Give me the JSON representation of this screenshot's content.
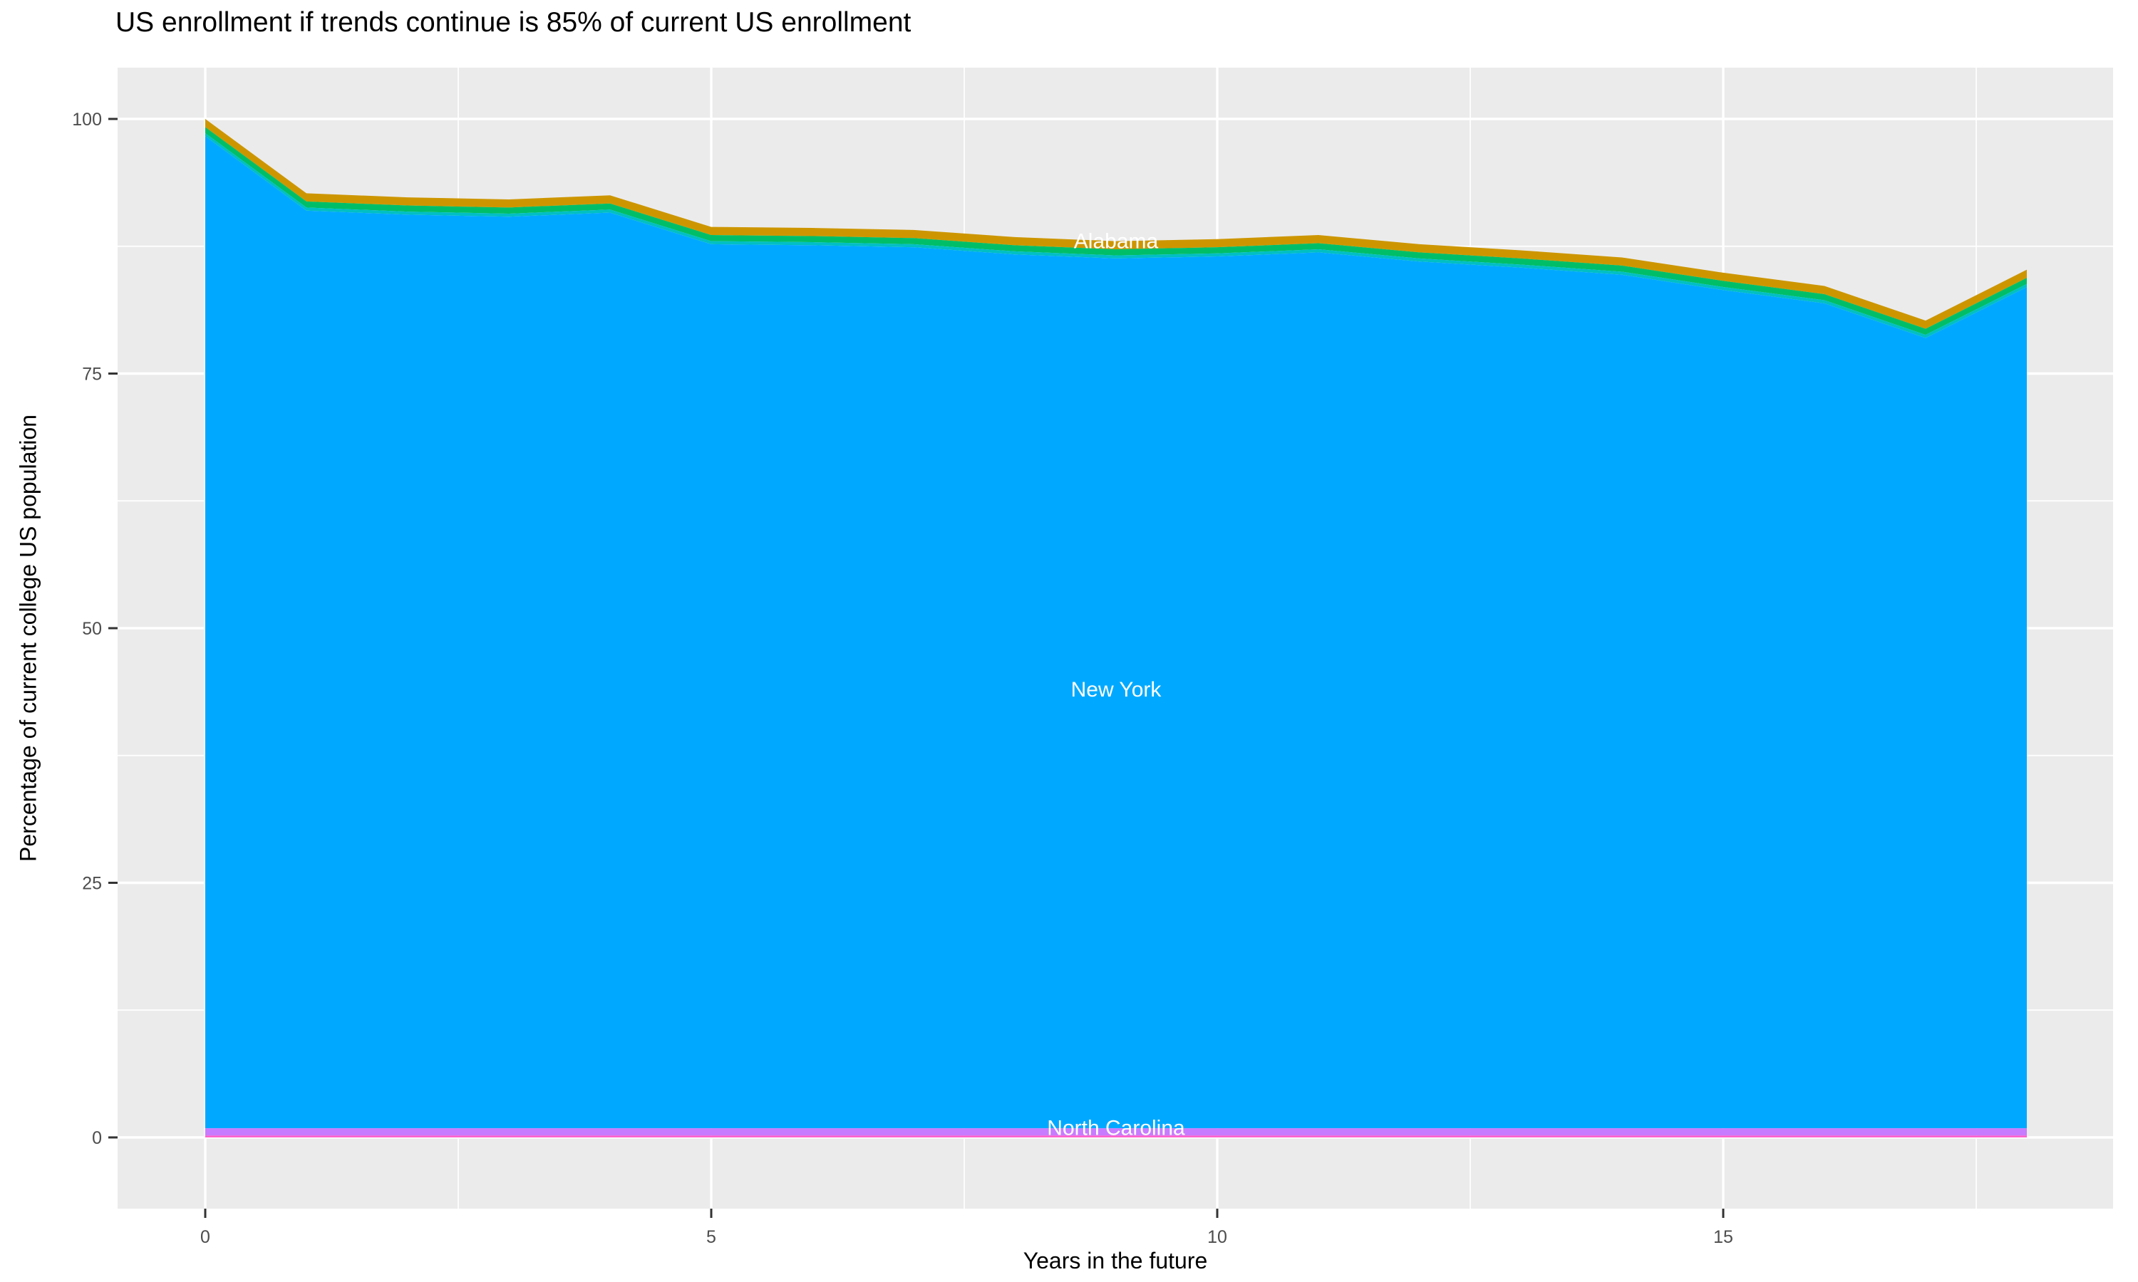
{
  "title": "US enrollment if trends continue is 85% of current US enrollment",
  "axes": {
    "x_label": "Years in the future",
    "y_label": "Percentage of current college US population"
  },
  "chart_data": {
    "type": "area",
    "stacked": true,
    "title": "US enrollment if trends continue is 85% of current US enrollment",
    "xlabel": "Years in the future",
    "ylabel": "Percentage of current college US population",
    "xlim": [
      0,
      18
    ],
    "ylim": [
      0,
      100
    ],
    "x_ticks": [
      0,
      5,
      10,
      15
    ],
    "y_ticks": [
      0,
      25,
      50,
      75,
      100
    ],
    "x_minor_gridlines": [
      2.5,
      7.5,
      12.5,
      17.5
    ],
    "y_minor_gridlines": [
      12.5,
      37.5,
      62.5,
      87.5
    ],
    "grid": "on",
    "legend": "none",
    "x": [
      0,
      1,
      2,
      3,
      4,
      5,
      6,
      7,
      8,
      9,
      10,
      11,
      12,
      13,
      14,
      15,
      16,
      17,
      18
    ],
    "stack_top_total": [
      100,
      92.7,
      92.3,
      92.1,
      92.5,
      89.4,
      89.3,
      89.1,
      88.4,
      88.0,
      88.2,
      88.6,
      87.7,
      87.1,
      86.4,
      84.9,
      83.6,
      80.2,
      85.2
    ],
    "layers": [
      {
        "name": "top-band-gold",
        "color": "#CD9600",
        "top_offset": 0,
        "bottom_offset": 0.8
      },
      {
        "name": "band-green",
        "color": "#00BE67",
        "top_offset": 0.8,
        "bottom_offset": 1.4
      },
      {
        "name": "band-teal",
        "color": "#00BFC4",
        "top_offset": 1.4,
        "bottom_offset": 1.7
      },
      {
        "name": "band-azure-new-york",
        "color": "#00A9FF",
        "top_offset": 1.7,
        "bottom_const": 0.9
      },
      {
        "name": "band-violet-north-carolina",
        "color": "#C77CFF",
        "top_const": 0.9,
        "bottom_const": 0.18
      },
      {
        "name": "bottom-band-pink",
        "color": "#FF61CC",
        "top_const": 0.18,
        "bottom_const": 0
      }
    ],
    "area_labels": [
      {
        "text": "Alabama",
        "x": 9,
        "value": 88.0
      },
      {
        "text": "New York",
        "x": 9,
        "value": 44.0
      },
      {
        "text": "North Carolina",
        "x": 9,
        "value": 0.95
      }
    ],
    "colors": {
      "panel_background": "#EBEBEB",
      "gridline": "#FFFFFF",
      "tick_label_text": "#4D4D4D",
      "tick_mark": "#333333",
      "area_label_text": "#FFFFFF",
      "title_text": "#000000"
    }
  }
}
